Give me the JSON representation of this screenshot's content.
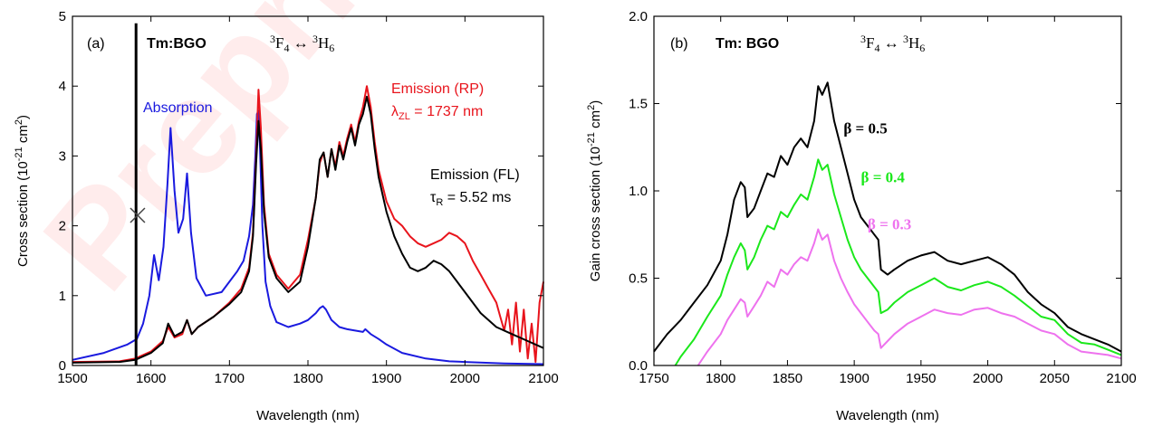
{
  "watermark": "Preprint",
  "chart_data": [
    {
      "type": "line",
      "panel_label": "(a)",
      "xlabel": "Wavelength (nm)",
      "ylabel": "Cross section (10^-21 cm^2)",
      "xlim": [
        1500,
        2100
      ],
      "ylim": [
        0,
        5
      ],
      "xticks": [
        1500,
        1600,
        1700,
        1800,
        1900,
        2000,
        2100
      ],
      "yticks": [
        0,
        1,
        2,
        3,
        4,
        5
      ],
      "grid": false,
      "annotations": {
        "crystal": "Tm:BGO",
        "transition": "3F4 ↔ 3H6",
        "absorption": "Absorption",
        "emission_rp": "Emission (RP)",
        "lambda_zl": "λZL = 1737 nm",
        "emission_fl": "Emission (FL)",
        "tau_r": "τR = 5.52 ms"
      },
      "zero_line_marker": {
        "x": 1583,
        "y": 2.15,
        "symbol": "×"
      },
      "series": [
        {
          "name": "Absorption",
          "color": "#1a1adf",
          "x": [
            1500,
            1540,
            1570,
            1582,
            1590,
            1598,
            1604,
            1610,
            1616,
            1621,
            1625,
            1630,
            1635,
            1641,
            1646,
            1651,
            1658,
            1670,
            1690,
            1700,
            1710,
            1718,
            1725,
            1730,
            1733,
            1735,
            1737,
            1739,
            1742,
            1746,
            1752,
            1760,
            1775,
            1790,
            1800,
            1810,
            1815,
            1819,
            1823,
            1830,
            1840,
            1850,
            1860,
            1870,
            1873,
            1880,
            1890,
            1900,
            1920,
            1950,
            1980,
            2000,
            2050,
            2100
          ],
          "y": [
            0.08,
            0.18,
            0.3,
            0.38,
            0.6,
            1.0,
            1.58,
            1.22,
            1.7,
            2.6,
            3.4,
            2.5,
            1.9,
            2.1,
            2.75,
            1.9,
            1.25,
            1.0,
            1.05,
            1.2,
            1.35,
            1.5,
            1.85,
            2.3,
            3.0,
            3.6,
            3.65,
            3.1,
            2.0,
            1.2,
            0.85,
            0.62,
            0.55,
            0.6,
            0.65,
            0.75,
            0.82,
            0.85,
            0.8,
            0.65,
            0.55,
            0.52,
            0.5,
            0.48,
            0.52,
            0.45,
            0.38,
            0.3,
            0.18,
            0.1,
            0.06,
            0.05,
            0.03,
            0.02
          ]
        },
        {
          "name": "Emission (RP)",
          "color": "#e8141c",
          "x": [
            1500,
            1560,
            1580,
            1600,
            1615,
            1622,
            1630,
            1640,
            1646,
            1652,
            1660,
            1680,
            1700,
            1715,
            1725,
            1730,
            1734,
            1737,
            1740,
            1744,
            1750,
            1760,
            1775,
            1790,
            1800,
            1810,
            1815,
            1820,
            1825,
            1830,
            1835,
            1840,
            1845,
            1850,
            1855,
            1860,
            1865,
            1870,
            1875,
            1880,
            1885,
            1890,
            1900,
            1910,
            1920,
            1930,
            1940,
            1950,
            1960,
            1970,
            1980,
            1990,
            2000,
            2010,
            2020,
            2030,
            2040,
            2045,
            2050,
            2055,
            2060,
            2065,
            2070,
            2075,
            2080,
            2085,
            2090,
            2095,
            2100
          ],
          "y": [
            0.05,
            0.06,
            0.1,
            0.2,
            0.35,
            0.55,
            0.4,
            0.45,
            0.65,
            0.45,
            0.55,
            0.7,
            0.9,
            1.1,
            1.4,
            1.9,
            3.0,
            3.95,
            3.4,
            2.3,
            1.6,
            1.3,
            1.1,
            1.3,
            1.8,
            2.4,
            2.9,
            3.05,
            2.7,
            3.1,
            2.85,
            3.2,
            3.0,
            3.25,
            3.45,
            3.2,
            3.5,
            3.7,
            4.0,
            3.7,
            3.2,
            2.8,
            2.35,
            2.1,
            2.0,
            1.85,
            1.75,
            1.7,
            1.75,
            1.8,
            1.9,
            1.85,
            1.75,
            1.5,
            1.3,
            1.1,
            0.9,
            0.7,
            0.5,
            0.8,
            0.3,
            0.9,
            0.2,
            0.8,
            0.1,
            0.6,
            0.05,
            0.9,
            1.2
          ]
        },
        {
          "name": "Emission (FL)",
          "color": "#000000",
          "x": [
            1500,
            1560,
            1580,
            1600,
            1615,
            1622,
            1630,
            1640,
            1646,
            1652,
            1660,
            1680,
            1700,
            1715,
            1725,
            1730,
            1734,
            1737,
            1740,
            1744,
            1750,
            1760,
            1775,
            1790,
            1800,
            1810,
            1815,
            1820,
            1825,
            1830,
            1835,
            1840,
            1845,
            1850,
            1855,
            1860,
            1865,
            1870,
            1875,
            1880,
            1885,
            1890,
            1900,
            1910,
            1920,
            1930,
            1940,
            1950,
            1960,
            1970,
            1980,
            1990,
            2000,
            2010,
            2020,
            2040,
            2060,
            2080,
            2100
          ],
          "y": [
            0.04,
            0.05,
            0.08,
            0.18,
            0.32,
            0.6,
            0.42,
            0.48,
            0.65,
            0.45,
            0.55,
            0.7,
            0.88,
            1.05,
            1.35,
            1.85,
            2.9,
            3.5,
            3.1,
            2.2,
            1.55,
            1.25,
            1.05,
            1.2,
            1.7,
            2.4,
            2.95,
            3.05,
            2.7,
            3.1,
            2.8,
            3.15,
            2.95,
            3.2,
            3.4,
            3.15,
            3.45,
            3.6,
            3.85,
            3.6,
            3.1,
            2.7,
            2.2,
            1.85,
            1.6,
            1.4,
            1.35,
            1.4,
            1.5,
            1.45,
            1.35,
            1.2,
            1.05,
            0.9,
            0.75,
            0.55,
            0.45,
            0.35,
            0.25
          ]
        },
        {
          "name": "Emission (FL) zero-line",
          "color": "#000000",
          "x": [
            1581,
            1581
          ],
          "y": [
            0,
            4.9
          ]
        }
      ]
    },
    {
      "type": "line",
      "panel_label": "(b)",
      "xlabel": "Wavelength (nm)",
      "ylabel": "Gain cross section (10^-21 cm^2)",
      "xlim": [
        1750,
        2100
      ],
      "ylim": [
        0,
        2.0
      ],
      "xticks": [
        1750,
        1800,
        1850,
        1900,
        1950,
        2000,
        2050,
        2100
      ],
      "yticks": [
        0.0,
        0.5,
        1.0,
        1.5,
        2.0
      ],
      "grid": false,
      "annotations": {
        "crystal": "Tm: BGO",
        "transition": "3F4 ↔ 3H6"
      },
      "series": [
        {
          "name": "β = 0.5",
          "color": "#000000",
          "x": [
            1750,
            1760,
            1770,
            1780,
            1790,
            1800,
            1805,
            1810,
            1815,
            1818,
            1820,
            1825,
            1830,
            1835,
            1840,
            1845,
            1850,
            1855,
            1860,
            1865,
            1870,
            1873,
            1876,
            1880,
            1885,
            1890,
            1895,
            1900,
            1905,
            1910,
            1915,
            1918,
            1920,
            1925,
            1930,
            1940,
            1950,
            1960,
            1970,
            1980,
            1990,
            2000,
            2010,
            2020,
            2030,
            2040,
            2050,
            2060,
            2070,
            2080,
            2090,
            2100
          ],
          "y": [
            0.08,
            0.18,
            0.26,
            0.36,
            0.46,
            0.6,
            0.75,
            0.95,
            1.05,
            1.02,
            0.85,
            0.9,
            1.0,
            1.1,
            1.08,
            1.2,
            1.15,
            1.25,
            1.3,
            1.25,
            1.4,
            1.6,
            1.55,
            1.62,
            1.4,
            1.25,
            1.1,
            0.95,
            0.85,
            0.8,
            0.75,
            0.72,
            0.55,
            0.52,
            0.55,
            0.6,
            0.63,
            0.65,
            0.6,
            0.58,
            0.6,
            0.62,
            0.58,
            0.52,
            0.42,
            0.35,
            0.3,
            0.22,
            0.18,
            0.15,
            0.12,
            0.08
          ]
        },
        {
          "name": "β = 0.4",
          "color": "#1be81b",
          "x": [
            1766,
            1770,
            1780,
            1790,
            1800,
            1805,
            1810,
            1815,
            1818,
            1820,
            1825,
            1830,
            1835,
            1840,
            1845,
            1850,
            1855,
            1860,
            1865,
            1870,
            1873,
            1876,
            1880,
            1885,
            1890,
            1895,
            1900,
            1905,
            1910,
            1915,
            1918,
            1920,
            1925,
            1930,
            1940,
            1950,
            1960,
            1970,
            1980,
            1990,
            2000,
            2010,
            2020,
            2030,
            2040,
            2050,
            2060,
            2070,
            2080,
            2090,
            2100
          ],
          "y": [
            0.0,
            0.05,
            0.15,
            0.28,
            0.4,
            0.52,
            0.62,
            0.7,
            0.66,
            0.55,
            0.62,
            0.72,
            0.8,
            0.78,
            0.88,
            0.85,
            0.92,
            0.98,
            0.95,
            1.08,
            1.18,
            1.12,
            1.15,
            0.98,
            0.85,
            0.72,
            0.62,
            0.55,
            0.5,
            0.45,
            0.42,
            0.3,
            0.32,
            0.36,
            0.42,
            0.46,
            0.5,
            0.45,
            0.43,
            0.46,
            0.48,
            0.45,
            0.4,
            0.34,
            0.28,
            0.26,
            0.18,
            0.13,
            0.12,
            0.09,
            0.06
          ]
        },
        {
          "name": "β = 0.3",
          "color": "#ee72ee",
          "x": [
            1783,
            1790,
            1800,
            1805,
            1810,
            1815,
            1818,
            1820,
            1825,
            1830,
            1835,
            1840,
            1845,
            1850,
            1855,
            1860,
            1865,
            1870,
            1873,
            1876,
            1880,
            1885,
            1890,
            1895,
            1900,
            1905,
            1910,
            1915,
            1918,
            1920,
            1925,
            1930,
            1940,
            1950,
            1960,
            1970,
            1980,
            1990,
            2000,
            2010,
            2020,
            2030,
            2040,
            2050,
            2060,
            2070,
            2080,
            2090,
            2100
          ],
          "y": [
            0.0,
            0.08,
            0.18,
            0.26,
            0.32,
            0.38,
            0.36,
            0.28,
            0.34,
            0.4,
            0.48,
            0.45,
            0.55,
            0.52,
            0.58,
            0.62,
            0.6,
            0.7,
            0.78,
            0.72,
            0.75,
            0.6,
            0.5,
            0.42,
            0.35,
            0.3,
            0.25,
            0.2,
            0.18,
            0.1,
            0.14,
            0.18,
            0.24,
            0.28,
            0.32,
            0.3,
            0.29,
            0.32,
            0.33,
            0.3,
            0.28,
            0.24,
            0.2,
            0.18,
            0.12,
            0.08,
            0.07,
            0.06,
            0.04
          ]
        }
      ],
      "series_labels": [
        {
          "text": "β = 0.5",
          "x": 1892,
          "y": 1.33,
          "color": "#000000"
        },
        {
          "text": "β = 0.4",
          "x": 1905,
          "y": 1.05,
          "color": "#1be81b"
        },
        {
          "text": "β = 0.3",
          "x": 1910,
          "y": 0.78,
          "color": "#ee72ee"
        }
      ]
    }
  ]
}
